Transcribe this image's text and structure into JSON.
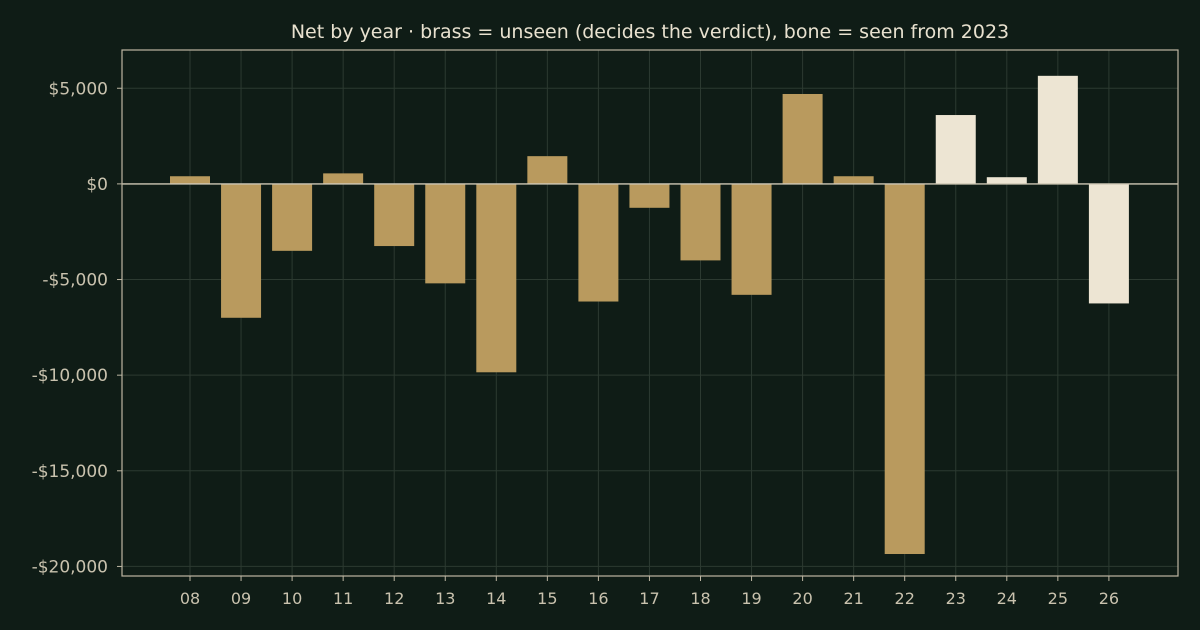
{
  "chart_data": {
    "type": "bar",
    "title": "Net by year  ·  brass = unseen (decides the verdict), bone = seen from 2023",
    "xlabel": "",
    "ylabel": "",
    "categories": [
      "08",
      "09",
      "10",
      "11",
      "12",
      "13",
      "14",
      "15",
      "16",
      "17",
      "18",
      "19",
      "20",
      "21",
      "22",
      "23",
      "24",
      "25",
      "26"
    ],
    "series": [
      {
        "values": [
          400,
          -7000,
          -3500,
          550,
          -3250,
          -5200,
          -9850,
          1450,
          -6150,
          -1250,
          -4000,
          -5800,
          4700,
          400,
          -19350,
          3600,
          350,
          5650,
          -6250
        ],
        "group": [
          "unseen",
          "unseen",
          "unseen",
          "unseen",
          "unseen",
          "unseen",
          "unseen",
          "unseen",
          "unseen",
          "unseen",
          "unseen",
          "unseen",
          "unseen",
          "unseen",
          "unseen",
          "seen",
          "seen",
          "seen",
          "seen"
        ]
      }
    ],
    "yticks": [
      5000,
      0,
      -5000,
      -10000,
      -15000,
      -20000
    ],
    "ytick_labels": [
      "$5,000",
      "$0",
      "-$5,000",
      "-$10,000",
      "-$15,000",
      "-$20,000"
    ],
    "ylim": [
      -20500,
      7000
    ],
    "grid": true,
    "legend": "none",
    "colors": {
      "unseen": "#b99a5e",
      "seen": "#ede5d3",
      "background": "#0f1c16",
      "grid": "#2c3a31",
      "frame": "#bdb6a3"
    }
  }
}
